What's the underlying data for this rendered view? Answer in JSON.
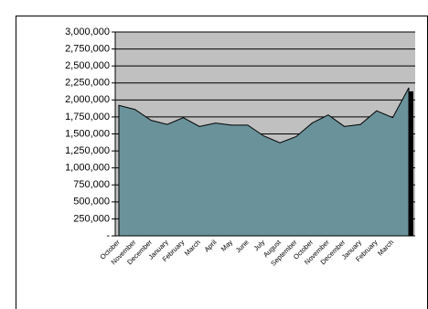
{
  "chart_data": {
    "type": "area",
    "categories": [
      "October",
      "November",
      "December",
      "January",
      "February",
      "March",
      "April",
      "May",
      "June",
      "July",
      "August",
      "September",
      "October",
      "November",
      "December",
      "January",
      "February",
      "March",
      null
    ],
    "series": [
      {
        "color": "#6a929b",
        "values": [
          1920000,
          1860000,
          1700000,
          1640000,
          1740000,
          1610000,
          1660000,
          1630000,
          1630000,
          1470000,
          1370000,
          1460000,
          1660000,
          1780000,
          1610000,
          1640000,
          1840000,
          1740000,
          2180000
        ]
      }
    ],
    "ylim": [
      0,
      3000000
    ],
    "yticks": [
      {
        "value": 0,
        "label": "-"
      },
      {
        "value": 250000,
        "label": "250,000"
      },
      {
        "value": 500000,
        "label": "500,000"
      },
      {
        "value": 750000,
        "label": "750,000"
      },
      {
        "value": 1000000,
        "label": "1,000,000"
      },
      {
        "value": 1250000,
        "label": "1,250,000"
      },
      {
        "value": 1500000,
        "label": "1,500,000"
      },
      {
        "value": 1750000,
        "label": "1,750,000"
      },
      {
        "value": 2000000,
        "label": "2,000,000"
      },
      {
        "value": 2250000,
        "label": "2,250,000"
      },
      {
        "value": 2500000,
        "label": "2,500,000"
      },
      {
        "value": 2750000,
        "label": "2,750,000"
      },
      {
        "value": 3000000,
        "label": "3,000,000"
      }
    ],
    "grid": true,
    "background": "#c0c0c0"
  }
}
